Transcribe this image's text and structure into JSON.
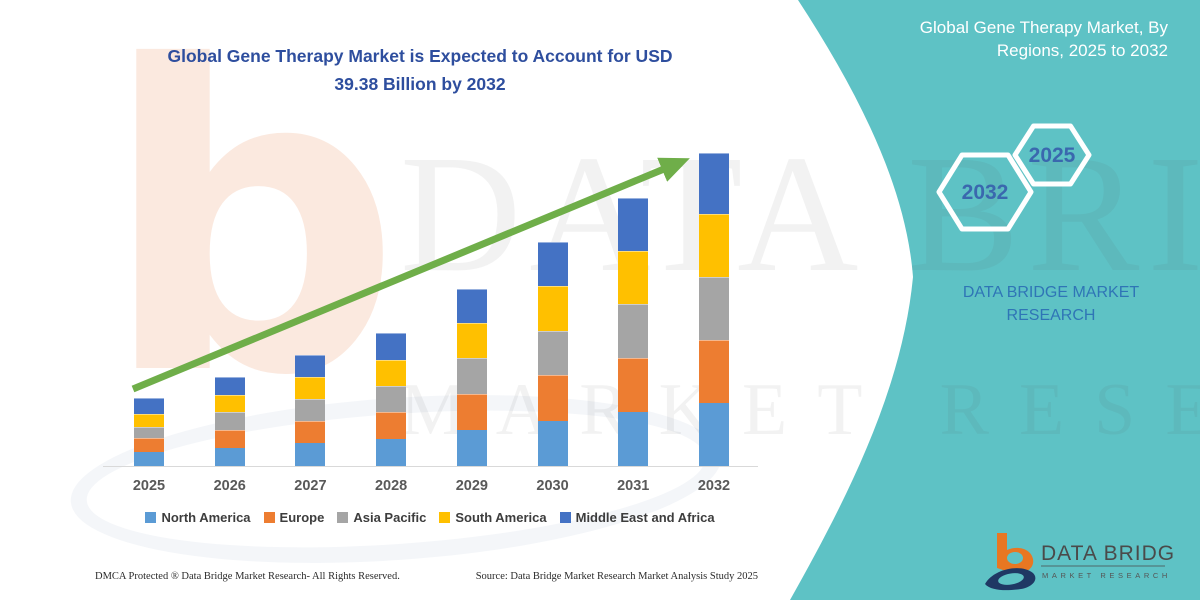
{
  "header": {
    "title_line1": "Global Gene Therapy Market is Expected to Account for USD",
    "title_line2": "39.38 Billion by 2032"
  },
  "chart_data": {
    "type": "bar",
    "stacked": true,
    "title": "Global Gene Therapy Market is Expected to Account for USD 39.38 Billion by 2032",
    "unit": "USD Billion",
    "categories": [
      "2025",
      "2026",
      "2027",
      "2028",
      "2029",
      "2030",
      "2031",
      "2032"
    ],
    "series": [
      {
        "name": "North America",
        "color": "#5B9BD5",
        "values": [
          1.8,
          2.32,
          2.86,
          3.42,
          4.52,
          5.72,
          6.84,
          7.94
        ]
      },
      {
        "name": "Europe",
        "color": "#ED7D31",
        "values": [
          1.68,
          2.26,
          2.8,
          3.36,
          4.55,
          5.68,
          6.78,
          7.9
        ]
      },
      {
        "name": "Asia Pacific",
        "color": "#A5A5A5",
        "values": [
          1.48,
          2.18,
          2.78,
          3.34,
          4.54,
          5.62,
          6.74,
          7.93
        ]
      },
      {
        "name": "South America",
        "color": "#FFC000",
        "values": [
          1.61,
          2.2,
          2.74,
          3.28,
          4.38,
          5.6,
          6.7,
          7.93
        ]
      },
      {
        "name": "Middle East and Africa",
        "color": "#4472C4",
        "values": [
          1.98,
          2.24,
          2.78,
          3.33,
          4.28,
          5.56,
          6.65,
          7.68
        ]
      }
    ],
    "totals": [
      8.55,
      11.2,
      13.96,
      16.73,
      22.27,
      28.18,
      33.71,
      39.38
    ],
    "highlight_value_2032": "39.38",
    "ylim": [
      0,
      40
    ],
    "grid": false,
    "legend_position": "bottom",
    "trend_arrow_color": "#6FAE49",
    "xlabel": "",
    "ylabel": ""
  },
  "right_panel": {
    "heading_line1": "Global Gene Therapy Market, By",
    "heading_line2": "Regions, 2025 to 2032",
    "badge_left_year": "2032",
    "badge_right_year": "2025",
    "brand_text": "DATA BRIDGE MARKET RESEARCH",
    "logo_title": "DATA BRIDGE",
    "logo_subtitle": "MARKET RESEARCH",
    "teal_color": "#5EC2C5"
  },
  "watermark": {
    "letter": "b",
    "line1": "DATA BRIDGE",
    "line2": "MARKET RESEARCH"
  },
  "footer": {
    "left": "DMCA Protected ® Data Bridge Market Research-  All Rights Reserved.",
    "right": "Source: Data Bridge Market Research  Market Analysis Study 2025"
  }
}
